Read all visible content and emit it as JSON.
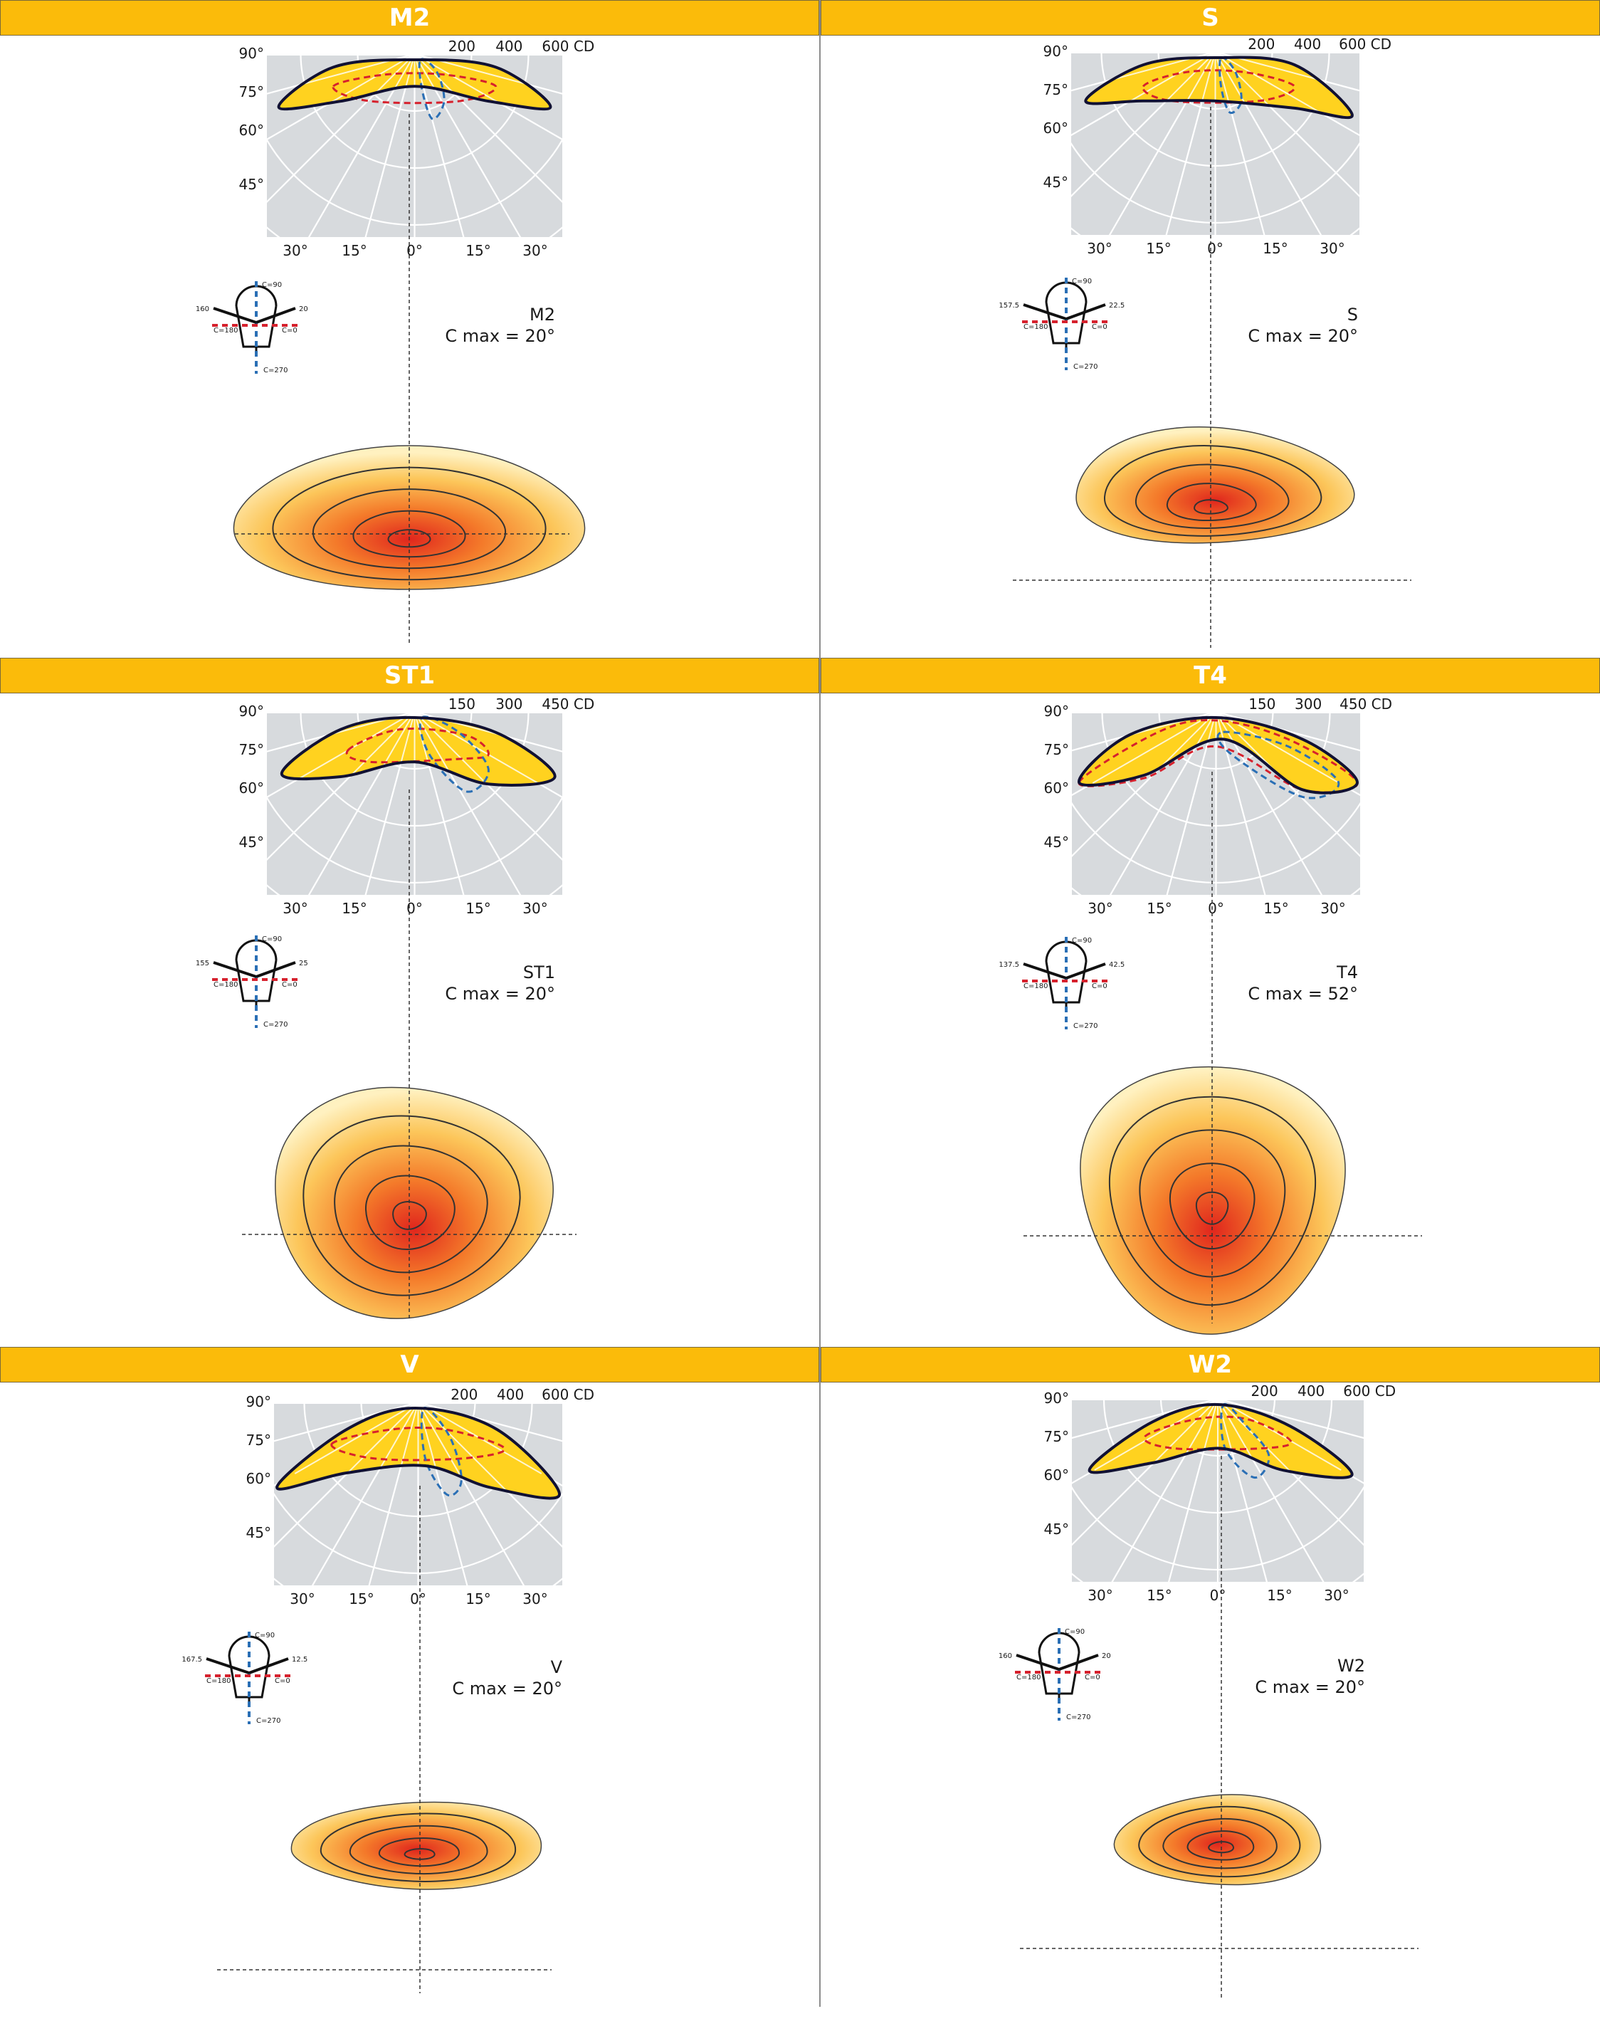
{
  "colors": {
    "header_bg": "#fbbb0a",
    "panel_bg": "#d7dadd",
    "lobe_fill": "#ffd21f",
    "c0_line": "#111133",
    "c90_line": "#2a6fb5",
    "c180_line": "#d6212d"
  },
  "panels": [
    {
      "title": "M2",
      "scale": [
        "200",
        "400",
        "600 CD"
      ],
      "model": "M2",
      "cmax": "C max = 20°",
      "lum_left": "160",
      "lum_right": "20"
    },
    {
      "title": "S",
      "scale": [
        "200",
        "400",
        "600 CD"
      ],
      "model": "S",
      "cmax": "C max = 20°",
      "lum_left": "157.5",
      "lum_right": "22.5"
    },
    {
      "title": "ST1",
      "scale": [
        "150",
        "300",
        "450 CD"
      ],
      "model": "ST1",
      "cmax": "C max = 20°",
      "lum_left": "155",
      "lum_right": "25"
    },
    {
      "title": "T4",
      "scale": [
        "150",
        "300",
        "450 CD"
      ],
      "model": "T4",
      "cmax": "C max = 52°",
      "lum_left": "137.5",
      "lum_right": "42.5"
    },
    {
      "title": "V",
      "scale": [
        "200",
        "400",
        "600 CD"
      ],
      "model": "V",
      "cmax": "C max = 20°",
      "lum_left": "167.5",
      "lum_right": "12.5"
    },
    {
      "title": "W2",
      "scale": [
        "200",
        "400",
        "600 CD"
      ],
      "model": "W2",
      "cmax": "C max = 20°",
      "lum_left": "160",
      "lum_right": "20"
    }
  ],
  "polar_labels": {
    "vertical": [
      "90°",
      "75°",
      "60°",
      "45°"
    ],
    "horizontal": [
      "30°",
      "15°",
      "0°",
      "15°",
      "30°"
    ]
  },
  "luminaire_labels": {
    "c90": "C=90",
    "c0": "C=0",
    "c180": "C=180",
    "c270": "C=270"
  }
}
